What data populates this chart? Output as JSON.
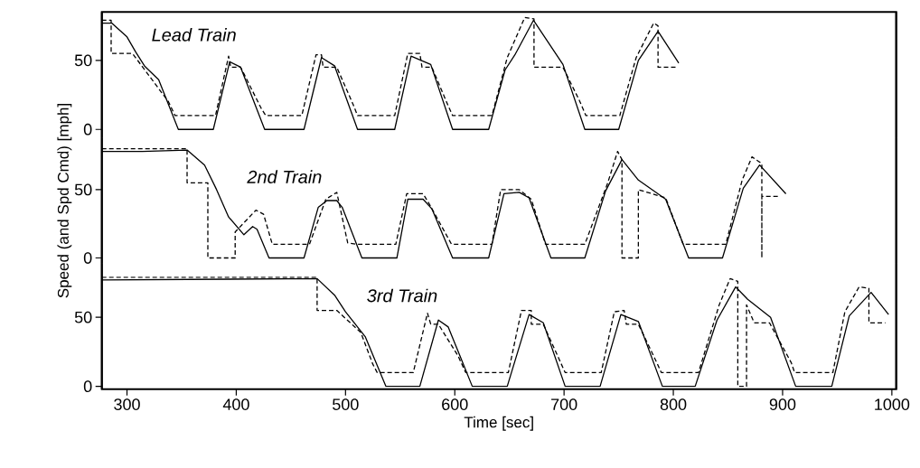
{
  "chart_data": [
    {
      "type": "line",
      "annotations": [
        "Lead Train"
      ],
      "xlim": [
        277,
        1004
      ],
      "ylim": [
        -6,
        85
      ],
      "yticks": [
        0,
        50
      ],
      "tick_labels": "y",
      "series": [
        {
          "color": "#000000",
          "line_style": "solid",
          "x": [
            277,
            286,
            300,
            308,
            316,
            329,
            347,
            379,
            394,
            404,
            426,
            462,
            478,
            490,
            511,
            545,
            560,
            578,
            598,
            631,
            646,
            655,
            672,
            699,
            719,
            750,
            768,
            786,
            805
          ],
          "values": [
            77,
            77,
            67,
            56,
            46,
            36,
            0,
            0,
            49,
            45,
            0,
            0,
            52,
            46,
            0,
            0,
            53,
            47,
            0,
            0,
            43,
            54,
            79,
            47,
            0,
            0,
            50,
            71,
            48
          ]
        },
        {
          "color": "#000000",
          "line_style": "dashed",
          "x": [
            277,
            285.5,
            285.5,
            305,
            322,
            338,
            344,
            381,
            393,
            395,
            404,
            423,
            427,
            460,
            473,
            478,
            479.5,
            492,
            507,
            511,
            545,
            557,
            568,
            570,
            579,
            594,
            598,
            634,
            648,
            664,
            672.5,
            672.5,
            699,
            714,
            720,
            751,
            766,
            782,
            786,
            786,
            803
          ],
          "values": [
            79,
            79,
            55,
            55,
            37,
            20,
            10,
            10,
            53,
            45,
            45,
            15,
            10,
            10,
            54,
            54,
            45,
            45,
            18,
            10,
            10,
            55,
            55,
            45,
            45,
            17,
            10,
            10,
            52,
            81,
            80,
            45,
            45,
            21,
            10,
            10,
            52,
            77,
            75,
            45,
            45
          ]
        }
      ]
    },
    {
      "type": "line",
      "annotations": [
        "2nd Train"
      ],
      "ylabel": "Speed (and Spd Cmd) [mph]",
      "xlim": [
        277,
        1004
      ],
      "ylim": [
        -4,
        88
      ],
      "yticks": [
        0,
        50
      ],
      "tick_labels": "y",
      "series": [
        {
          "color": "#000000",
          "line_style": "solid",
          "x": [
            277,
            314,
            355,
            371,
            382,
            393,
            407,
            415,
            419,
            430,
            462,
            475,
            483,
            492,
            497,
            515,
            547,
            557,
            571,
            579,
            598,
            631,
            645,
            659,
            668,
            688,
            719,
            738,
            753,
            768,
            793,
            814,
            845,
            864,
            879,
            903
          ],
          "values": [
            78,
            78,
            79,
            68,
            50,
            30,
            17,
            23,
            21,
            0,
            0,
            37,
            42,
            42,
            37,
            0,
            0,
            43,
            43,
            36,
            0,
            0,
            47,
            48,
            44,
            0,
            0,
            49,
            72,
            57,
            43,
            0,
            0,
            51,
            68,
            47
          ]
        },
        {
          "color": "#000000",
          "line_style": "dashed",
          "x": [
            277,
            355,
            355,
            374,
            374,
            399,
            399,
            418,
            425,
            433,
            467,
            482,
            492,
            502,
            510,
            546,
            556,
            571,
            577,
            597,
            631,
            634,
            642,
            659,
            670,
            683,
            719,
            740,
            749,
            753,
            753,
            768,
            768,
            793,
            809,
            848,
            863,
            872,
            881,
            881,
            881,
            897
          ],
          "values": [
            80,
            80,
            55,
            55,
            0,
            0,
            19,
            35,
            32,
            10,
            10,
            43,
            48,
            11,
            10,
            10,
            47,
            47,
            39,
            10,
            10,
            10,
            50,
            50,
            43,
            10,
            10,
            55,
            78,
            72,
            0,
            0,
            50,
            44,
            10,
            10,
            57,
            74,
            69,
            0,
            45,
            45
          ]
        }
      ]
    },
    {
      "type": "line",
      "annotations": [
        "3rd Train"
      ],
      "xlabel": "Time [sec]",
      "xlim": [
        277,
        1004
      ],
      "ylim": [
        -2,
        89
      ],
      "yticks": [
        0,
        50
      ],
      "xticks": [
        300,
        400,
        500,
        600,
        700,
        800,
        900,
        1000
      ],
      "series": [
        {
          "color": "#000000",
          "line_style": "solid",
          "x": [
            277,
            474,
            490,
            500,
            518,
            537,
            568,
            585,
            594,
            616,
            648,
            668,
            681,
            701,
            733,
            752,
            768,
            790,
            820,
            840,
            857,
            868,
            889,
            912,
            945,
            961,
            981,
            997
          ],
          "values": [
            77,
            78,
            66,
            54,
            36,
            0,
            0,
            48,
            43,
            0,
            0,
            52,
            46,
            0,
            0,
            52,
            47,
            0,
            0,
            48,
            72,
            63,
            50,
            0,
            0,
            51,
            68,
            52
          ]
        },
        {
          "color": "#000000",
          "line_style": "dashed",
          "x": [
            277,
            474,
            474,
            492,
            514,
            525,
            529,
            562,
            575,
            578,
            585,
            603,
            610,
            649,
            661,
            670,
            670,
            681,
            697,
            701,
            734,
            746,
            755,
            757,
            768,
            785,
            789,
            823,
            842,
            852,
            859,
            859,
            867,
            867,
            874,
            888,
            908,
            911,
            946,
            957,
            970,
            979,
            979,
            994
          ],
          "values": [
            79,
            79,
            55,
            55,
            39,
            16,
            10,
            10,
            53,
            45,
            45,
            22,
            10,
            10,
            55,
            55,
            45,
            45,
            17,
            10,
            10,
            54,
            55,
            45,
            45,
            17,
            10,
            10,
            59,
            78,
            76,
            0,
            0,
            59,
            46,
            46,
            17,
            10,
            10,
            54,
            72,
            71,
            46,
            46
          ]
        }
      ]
    }
  ]
}
